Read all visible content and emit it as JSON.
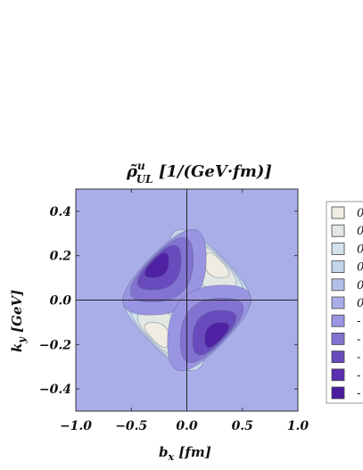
{
  "chart_data": {
    "type": "heatmap",
    "subtype": "contour",
    "title": {
      "symbol": "ρ̃",
      "superscript": "u",
      "subscript": "UL",
      "units": " [1/(GeV·fm)]"
    },
    "xlabel": {
      "main": "b",
      "sub": "x",
      "units": " [fm]"
    },
    "ylabel": {
      "main": "k",
      "sub": "y",
      "units": " [GeV]"
    },
    "xlim": [
      -1.0,
      1.0
    ],
    "ylim": [
      -0.5,
      0.5
    ],
    "xticks": [
      "−1.0",
      "−0.5",
      "0.0",
      "0.5",
      "1.0"
    ],
    "xtick_values": [
      -1.0,
      -0.5,
      0.0,
      0.5,
      1.0
    ],
    "yticks": [
      "0.4",
      "0.2",
      "0.0",
      "−0.2",
      "−0.4"
    ],
    "ytick_values": [
      0.4,
      0.2,
      0.0,
      -0.2,
      -0.4
    ],
    "lobes": [
      {
        "quadrant": "upper-right",
        "sign": 1,
        "center": [
          0.3,
          0.17
        ]
      },
      {
        "quadrant": "lower-left",
        "sign": 1,
        "center": [
          -0.3,
          -0.17
        ]
      },
      {
        "quadrant": "upper-left",
        "sign": -1,
        "center": [
          -0.3,
          0.17
        ]
      },
      {
        "quadrant": "lower-right",
        "sign": -1,
        "center": [
          0.3,
          -0.17
        ]
      }
    ],
    "contour_levels": [
      5,
      4,
      3,
      2,
      1,
      -1,
      -2,
      -3,
      -4,
      -5
    ],
    "colors": {
      "background": "#a9aee8",
      "pos": [
        "#c3d5eb",
        "#d3e2ec",
        "#e2e7e3",
        "#efede1"
      ],
      "neg": [
        "#9a95e2",
        "#8373d0",
        "#6a4bbd",
        "#4f21a3"
      ]
    },
    "legend": {
      "placement": "right",
      "labels": [
        "0",
        "0",
        "0",
        "0",
        "0",
        "0",
        "-",
        "-",
        "-",
        "-",
        "-"
      ],
      "colors": [
        "#efede1",
        "#e2e7e3",
        "#d3e2ec",
        "#c3d5eb",
        "#b4bfe8",
        "#a9aee8",
        "#9a95e2",
        "#8373d0",
        "#6a4bbd",
        "#5a2eb0",
        "#4a1a9f"
      ]
    },
    "grid": false
  }
}
